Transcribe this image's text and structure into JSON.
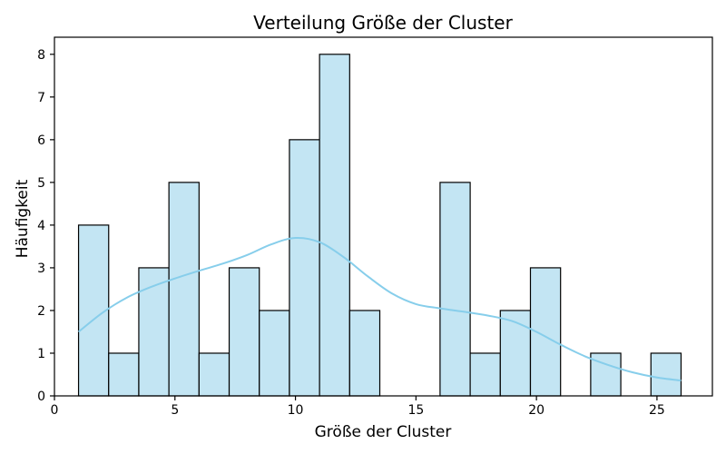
{
  "chart_data": {
    "type": "bar",
    "title": "Verteilung Größe der Cluster",
    "xlabel": "Größe der Cluster",
    "ylabel": "Häufigkeit",
    "xlim": [
      0,
      27.3
    ],
    "ylim": [
      0,
      8.4
    ],
    "xticks": [
      0,
      5,
      10,
      15,
      20,
      25
    ],
    "yticks": [
      0,
      1,
      2,
      3,
      4,
      5,
      6,
      7,
      8
    ],
    "bin_edges": [
      1,
      2.25,
      3.5,
      4.75,
      6,
      7.25,
      8.5,
      9.75,
      11,
      12.25,
      13.5,
      14.75,
      16,
      17.25,
      18.5,
      19.75,
      21,
      22.25,
      23.5,
      24.75,
      26
    ],
    "values": [
      4,
      1,
      3,
      5,
      1,
      3,
      2,
      6,
      8,
      2,
      0,
      0,
      5,
      1,
      2,
      3,
      0,
      1,
      0,
      1
    ],
    "kde": {
      "x": [
        1,
        2,
        3,
        4,
        5,
        6,
        7,
        8,
        9,
        10,
        11,
        12,
        13,
        14,
        15,
        16,
        17,
        18,
        19,
        20,
        21,
        22,
        23,
        24,
        25,
        26
      ],
      "y": [
        1.5,
        1.95,
        2.3,
        2.55,
        2.75,
        2.93,
        3.1,
        3.3,
        3.55,
        3.7,
        3.6,
        3.25,
        2.8,
        2.4,
        2.15,
        2.05,
        1.97,
        1.88,
        1.75,
        1.5,
        1.2,
        0.93,
        0.72,
        0.55,
        0.43,
        0.36
      ]
    },
    "bar_color": "#c3e5f3",
    "kde_color": "#87ceeb",
    "grid": false,
    "legend": false
  }
}
